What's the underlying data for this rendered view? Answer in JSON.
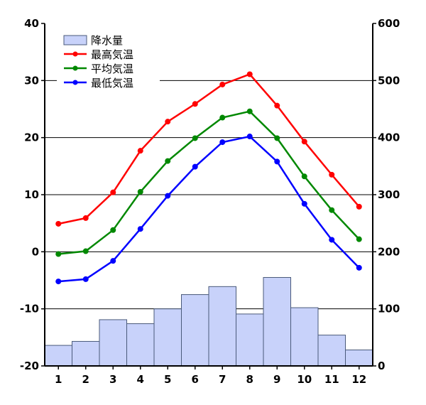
{
  "chart_data": {
    "type": "bar+line",
    "categories": [
      "1",
      "2",
      "3",
      "4",
      "5",
      "6",
      "7",
      "8",
      "9",
      "10",
      "11",
      "12"
    ],
    "precipitation": {
      "name": "降水量",
      "color": "#c8d2fa",
      "values": [
        36,
        43,
        81,
        74,
        100,
        125,
        139,
        91,
        155,
        102,
        54,
        28
      ]
    },
    "series": [
      {
        "name": "最高気温",
        "color": "#ff0000",
        "values": [
          4.9,
          5.9,
          10.4,
          17.7,
          22.8,
          25.9,
          29.3,
          31.1,
          25.6,
          19.3,
          13.5,
          7.9
        ]
      },
      {
        "name": "平均気温",
        "color": "#008800",
        "values": [
          -0.4,
          0.1,
          3.8,
          10.5,
          15.9,
          19.9,
          23.5,
          24.6,
          19.9,
          13.2,
          7.3,
          2.2
        ]
      },
      {
        "name": "最低気温",
        "color": "#0000ff",
        "values": [
          -5.2,
          -4.8,
          -1.6,
          4.0,
          9.8,
          14.9,
          19.2,
          20.2,
          15.8,
          8.4,
          2.1,
          -2.8
        ]
      }
    ],
    "y_left": {
      "min": -20,
      "max": 40,
      "ticks": [
        "-20",
        "-10",
        "0",
        "10",
        "20",
        "30",
        "40"
      ]
    },
    "y_right": {
      "min": 0,
      "max": 600,
      "ticks": [
        "0",
        "100",
        "200",
        "300",
        "400",
        "500",
        "600"
      ]
    },
    "grid": true,
    "legend": "top-left"
  }
}
